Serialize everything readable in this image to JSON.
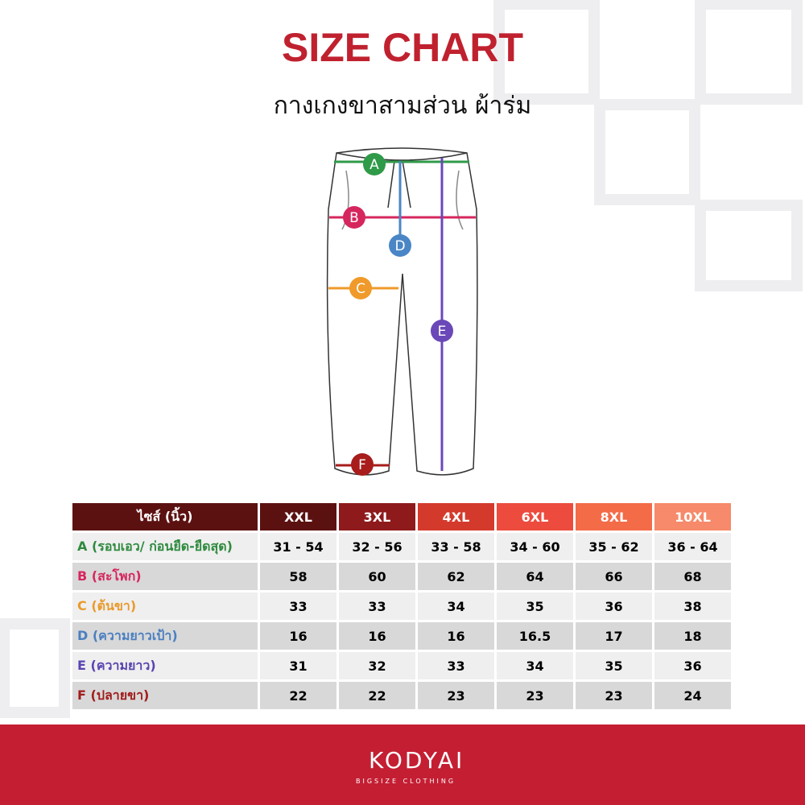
{
  "header": {
    "title": "SIZE CHART",
    "subtitle": "กางเกงขาสามส่วน ผ้าร่ม"
  },
  "diagram": {
    "labels": [
      "A",
      "B",
      "C",
      "D",
      "E",
      "F"
    ]
  },
  "table": {
    "columns": [
      "ไซส์ (นิ้ว)",
      "XXL",
      "3XL",
      "4XL",
      "6XL",
      "8XL",
      "10XL"
    ],
    "rows": [
      [
        "A (รอบเอว/ ก่อนยืด-ยืดสุด)",
        "31 - 54",
        "32 - 56",
        "33 - 58",
        "34 - 60",
        "35 - 62",
        "36 - 64"
      ],
      [
        "B (สะโพก)",
        "58",
        "60",
        "62",
        "64",
        "66",
        "68"
      ],
      [
        "C (ต้นขา)",
        "33",
        "33",
        "34",
        "35",
        "36",
        "38"
      ],
      [
        "D (ความยาวเป้า)",
        "16",
        "16",
        "16",
        "16.5",
        "17",
        "18"
      ],
      [
        "E (ความยาว)",
        "31",
        "32",
        "33",
        "34",
        "35",
        "36"
      ],
      [
        "F (ปลายขา)",
        "22",
        "22",
        "23",
        "23",
        "23",
        "24"
      ]
    ]
  },
  "footer": {
    "brand": "KODYAI",
    "tagline": "BIGSIZE CLOTHING"
  }
}
